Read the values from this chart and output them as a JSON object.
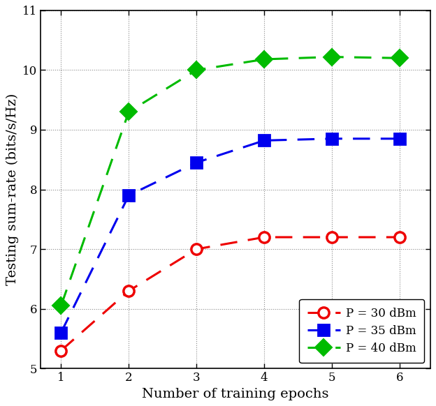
{
  "x": [
    1,
    2,
    3,
    4,
    5,
    6
  ],
  "series": [
    {
      "label": "P = 30 dBm",
      "color": "#ee0000",
      "marker": "o",
      "markersize": 11,
      "markerfacecolor": "white",
      "markeredgewidth": 2.5,
      "values": [
        5.3,
        6.3,
        7.0,
        7.2,
        7.2,
        7.2
      ]
    },
    {
      "label": "P = 35 dBm",
      "color": "#0000ee",
      "marker": "s",
      "markersize": 11,
      "markerfacecolor": "#0000ee",
      "markeredgewidth": 2.0,
      "values": [
        5.6,
        7.9,
        8.45,
        8.82,
        8.85,
        8.85
      ]
    },
    {
      "label": "P = 40 dBm",
      "color": "#00bb00",
      "marker": "D",
      "markersize": 12,
      "markerfacecolor": "#00bb00",
      "markeredgewidth": 1.5,
      "values": [
        6.05,
        9.3,
        10.0,
        10.18,
        10.22,
        10.2
      ]
    }
  ],
  "xlabel": "Number of training epochs",
  "ylabel": "Testing sum-rate (bits/s/Hz)",
  "xlim": [
    0.7,
    6.45
  ],
  "ylim": [
    5.0,
    11.0
  ],
  "yticks": [
    5,
    6,
    7,
    8,
    9,
    10,
    11
  ],
  "xticks": [
    1,
    2,
    3,
    4,
    5,
    6
  ],
  "legend_loc": "lower right",
  "figsize": [
    6.24,
    5.82
  ],
  "dpi": 100,
  "linewidth": 2.2,
  "dash_pattern": [
    8,
    5
  ]
}
